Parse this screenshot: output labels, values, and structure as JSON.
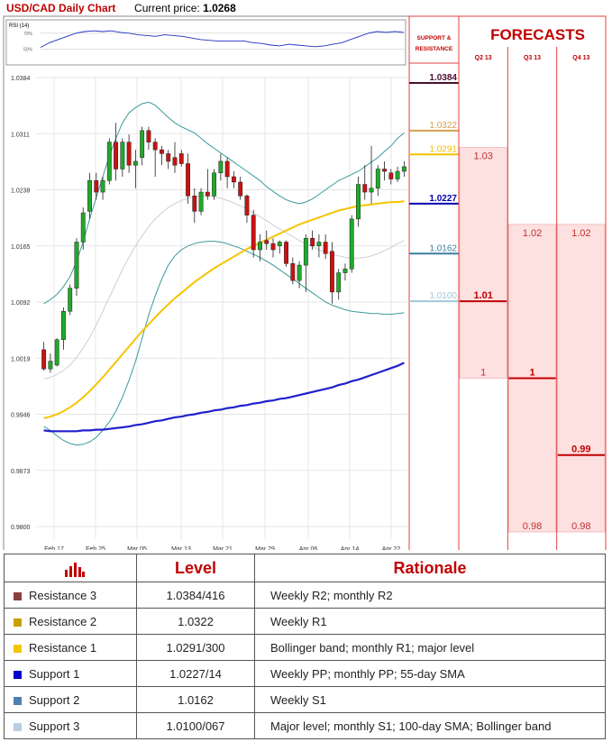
{
  "header": {
    "title": "USD/CAD Daily Chart",
    "price_label": "Current price: ",
    "price_value": "1.0268"
  },
  "rsi": {
    "label": "RSI (14)",
    "levels": [
      "70%",
      "50%"
    ],
    "values": [
      52,
      58,
      62,
      66,
      70,
      72,
      73,
      72,
      73,
      71,
      70,
      68,
      67,
      66,
      68,
      67,
      66,
      64,
      62,
      61,
      60,
      60,
      60,
      60,
      58,
      57,
      55,
      54,
      56,
      55,
      54,
      53,
      54,
      56,
      58,
      62,
      66,
      70,
      72,
      71,
      72,
      71
    ]
  },
  "chart_data": {
    "type": "candlestick",
    "yticks": [
      "1.0384",
      "1.0311",
      "1.0238",
      "1.0165",
      "1.0092",
      "1.0019",
      "0.9946",
      "0.9873",
      "0.9800"
    ],
    "ylim": [
      0.98,
      1.0384
    ],
    "xticks": [
      "Feb 17",
      "Feb 25",
      "Mar 05",
      "Mar 13",
      "Mar 21",
      "Mar 29",
      "Apr 06",
      "Apr 14",
      "Apr 22"
    ],
    "candles": [
      {
        "o": 1.003,
        "h": 1.004,
        "l": 1.0003,
        "c": 1.0005
      },
      {
        "o": 1.0005,
        "h": 1.0025,
        "l": 1.0,
        "c": 1.0015
      },
      {
        "o": 1.001,
        "h": 1.0045,
        "l": 1.0008,
        "c": 1.0043
      },
      {
        "o": 1.0043,
        "h": 1.0085,
        "l": 1.003,
        "c": 1.008
      },
      {
        "o": 1.008,
        "h": 1.0115,
        "l": 1.0075,
        "c": 1.011
      },
      {
        "o": 1.011,
        "h": 1.0175,
        "l": 1.01,
        "c": 1.017
      },
      {
        "o": 1.017,
        "h": 1.0215,
        "l": 1.016,
        "c": 1.0208
      },
      {
        "o": 1.021,
        "h": 1.026,
        "l": 1.02,
        "c": 1.025
      },
      {
        "o": 1.025,
        "h": 1.026,
        "l": 1.0225,
        "c": 1.0235
      },
      {
        "o": 1.0235,
        "h": 1.0255,
        "l": 1.0225,
        "c": 1.025
      },
      {
        "o": 1.025,
        "h": 1.0305,
        "l": 1.0245,
        "c": 1.03
      },
      {
        "o": 1.03,
        "h": 1.0325,
        "l": 1.025,
        "c": 1.0265
      },
      {
        "o": 1.0265,
        "h": 1.0305,
        "l": 1.0255,
        "c": 1.03
      },
      {
        "o": 1.03,
        "h": 1.031,
        "l": 1.026,
        "c": 1.027
      },
      {
        "o": 1.027,
        "h": 1.029,
        "l": 1.024,
        "c": 1.0275
      },
      {
        "o": 1.028,
        "h": 1.032,
        "l": 1.027,
        "c": 1.0315
      },
      {
        "o": 1.0315,
        "h": 1.032,
        "l": 1.029,
        "c": 1.03
      },
      {
        "o": 1.03,
        "h": 1.0305,
        "l": 1.0255,
        "c": 1.029
      },
      {
        "o": 1.029,
        "h": 1.0295,
        "l": 1.027,
        "c": 1.0285
      },
      {
        "o": 1.0285,
        "h": 1.029,
        "l": 1.0265,
        "c": 1.0275
      },
      {
        "o": 1.028,
        "h": 1.03,
        "l": 1.026,
        "c": 1.027
      },
      {
        "o": 1.0285,
        "h": 1.029,
        "l": 1.0268,
        "c": 1.0272
      },
      {
        "o": 1.0272,
        "h": 1.0285,
        "l": 1.022,
        "c": 1.023
      },
      {
        "o": 1.023,
        "h": 1.024,
        "l": 1.0195,
        "c": 1.021
      },
      {
        "o": 1.021,
        "h": 1.024,
        "l": 1.0205,
        "c": 1.0235
      },
      {
        "o": 1.0235,
        "h": 1.0265,
        "l": 1.0225,
        "c": 1.023
      },
      {
        "o": 1.023,
        "h": 1.0265,
        "l": 1.0225,
        "c": 1.026
      },
      {
        "o": 1.026,
        "h": 1.0285,
        "l": 1.025,
        "c": 1.0275
      },
      {
        "o": 1.0275,
        "h": 1.028,
        "l": 1.024,
        "c": 1.0255
      },
      {
        "o": 1.0255,
        "h": 1.0262,
        "l": 1.024,
        "c": 1.0248
      },
      {
        "o": 1.0248,
        "h": 1.0255,
        "l": 1.0225,
        "c": 1.023
      },
      {
        "o": 1.023,
        "h": 1.0232,
        "l": 1.0195,
        "c": 1.0205
      },
      {
        "o": 1.0205,
        "h": 1.0212,
        "l": 1.015,
        "c": 1.016
      },
      {
        "o": 1.016,
        "h": 1.018,
        "l": 1.0145,
        "c": 1.017
      },
      {
        "o": 1.0172,
        "h": 1.0185,
        "l": 1.016,
        "c": 1.0168
      },
      {
        "o": 1.0168,
        "h": 1.0175,
        "l": 1.015,
        "c": 1.016
      },
      {
        "o": 1.0165,
        "h": 1.0172,
        "l": 1.0155,
        "c": 1.017
      },
      {
        "o": 1.017,
        "h": 1.0172,
        "l": 1.0138,
        "c": 1.0142
      },
      {
        "o": 1.0142,
        "h": 1.015,
        "l": 1.0115,
        "c": 1.012
      },
      {
        "o": 1.012,
        "h": 1.0145,
        "l": 1.011,
        "c": 1.014
      },
      {
        "o": 1.014,
        "h": 1.018,
        "l": 1.0105,
        "c": 1.0175
      },
      {
        "o": 1.0175,
        "h": 1.0185,
        "l": 1.016,
        "c": 1.0165
      },
      {
        "o": 1.0165,
        "h": 1.018,
        "l": 1.015,
        "c": 1.017
      },
      {
        "o": 1.017,
        "h": 1.018,
        "l": 1.0148,
        "c": 1.0155
      },
      {
        "o": 1.0158,
        "h": 1.017,
        "l": 1.009,
        "c": 1.0105
      },
      {
        "o": 1.0105,
        "h": 1.0135,
        "l": 1.0095,
        "c": 1.013
      },
      {
        "o": 1.013,
        "h": 1.0142,
        "l": 1.012,
        "c": 1.0135
      },
      {
        "o": 1.0135,
        "h": 1.0205,
        "l": 1.013,
        "c": 1.02
      },
      {
        "o": 1.02,
        "h": 1.0255,
        "l": 1.019,
        "c": 1.0245
      },
      {
        "o": 1.0245,
        "h": 1.027,
        "l": 1.0225,
        "c": 1.0235
      },
      {
        "o": 1.0235,
        "h": 1.0295,
        "l": 1.022,
        "c": 1.024
      },
      {
        "o": 1.024,
        "h": 1.027,
        "l": 1.023,
        "c": 1.0265
      },
      {
        "o": 1.0265,
        "h": 1.0275,
        "l": 1.025,
        "c": 1.0262
      },
      {
        "o": 1.026,
        "h": 1.0265,
        "l": 1.0245,
        "c": 1.0252
      },
      {
        "o": 1.0252,
        "h": 1.0268,
        "l": 1.0248,
        "c": 1.0262
      },
      {
        "o": 1.0262,
        "h": 1.0275,
        "l": 1.0255,
        "c": 1.0268
      }
    ],
    "sma55": [
      0.9941,
      0.9943,
      0.9946,
      0.995,
      0.9955,
      0.9961,
      0.9968,
      0.9976,
      0.9985,
      0.9994,
      1.0004,
      1.0014,
      1.0024,
      1.0034,
      1.0044,
      1.0054,
      1.0063,
      1.0072,
      1.0081,
      1.0089,
      1.0097,
      1.0104,
      1.0111,
      1.0118,
      1.0124,
      1.013,
      1.0136,
      1.0141,
      1.0146,
      1.0151,
      1.0156,
      1.0161,
      1.0165,
      1.0169,
      1.0173,
      1.0177,
      1.0181,
      1.0185,
      1.0189,
      1.0193,
      1.0196,
      1.0199,
      1.0202,
      1.0205,
      1.0208,
      1.0211,
      1.0213,
      1.0215,
      1.0217,
      1.0218,
      1.0219,
      1.022,
      1.0221,
      1.0222,
      1.0222,
      1.0223
    ],
    "sma200": [
      0.9925,
      0.9924,
      0.9924,
      0.9924,
      0.9924,
      0.9924,
      0.9925,
      0.9925,
      0.9926,
      0.9926,
      0.9927,
      0.9928,
      0.9929,
      0.993,
      0.9932,
      0.9933,
      0.9935,
      0.9937,
      0.9938,
      0.994,
      0.9942,
      0.9943,
      0.9945,
      0.9946,
      0.9948,
      0.9949,
      0.9951,
      0.9952,
      0.9954,
      0.9955,
      0.9957,
      0.9958,
      0.996,
      0.9961,
      0.9963,
      0.9964,
      0.9966,
      0.9967,
      0.9969,
      0.9971,
      0.9973,
      0.9975,
      0.9977,
      0.9979,
      0.9981,
      0.9984,
      0.9986,
      0.9989,
      0.9991,
      0.9994,
      0.9997,
      1.0,
      1.0003,
      1.0006,
      1.0009,
      1.0013
    ],
    "bb_upper": [
      1.009,
      1.0095,
      1.0102,
      1.0112,
      1.0125,
      1.0145,
      1.017,
      1.02,
      1.0228,
      1.0255,
      1.0282,
      1.0305,
      1.0325,
      1.0338,
      1.0345,
      1.035,
      1.0352,
      1.0348,
      1.034,
      1.0332,
      1.0325,
      1.032,
      1.0316,
      1.0312,
      1.0305,
      1.0298,
      1.0292,
      1.0286,
      1.028,
      1.0274,
      1.0268,
      1.0262,
      1.0256,
      1.025,
      1.0242,
      1.0236,
      1.023,
      1.0225,
      1.0222,
      1.022,
      1.0222,
      1.0226,
      1.0232,
      1.0238,
      1.0244,
      1.025,
      1.0254,
      1.0258,
      1.0262,
      1.0268,
      1.0274,
      1.028,
      1.0288,
      1.0295,
      1.0305,
      1.0312
    ],
    "bb_middle": [
      0.9992,
      0.9994,
      0.9998,
      1.0003,
      1.001,
      1.002,
      1.0032,
      1.0046,
      1.0062,
      1.008,
      1.0098,
      1.0116,
      1.0134,
      1.015,
      1.0165,
      1.0178,
      1.019,
      1.02,
      1.0208,
      1.0215,
      1.022,
      1.0224,
      1.0227,
      1.0229,
      1.023,
      1.023,
      1.0229,
      1.0227,
      1.0224,
      1.0221,
      1.0217,
      1.0213,
      1.0208,
      1.0203,
      1.0198,
      1.0192,
      1.0187,
      1.0182,
      1.0177,
      1.0172,
      1.0168,
      1.0164,
      1.016,
      1.0157,
      1.0154,
      1.0152,
      1.015,
      1.0149,
      1.0149,
      1.015,
      1.0152,
      1.0155,
      1.0159,
      1.0163,
      1.0168,
      1.0172
    ],
    "bb_lower": [
      0.993,
      0.9925,
      0.9918,
      0.9912,
      0.9908,
      0.9906,
      0.9907,
      0.991,
      0.9916,
      0.9925,
      0.9936,
      0.995,
      0.9968,
      0.999,
      1.0015,
      1.0045,
      1.0075,
      1.01,
      1.0122,
      1.014,
      1.0152,
      1.016,
      1.0165,
      1.0168,
      1.017,
      1.0171,
      1.0171,
      1.017,
      1.0168,
      1.0165,
      1.0162,
      1.0158,
      1.0154,
      1.015,
      1.0145,
      1.014,
      1.0134,
      1.0128,
      1.0122,
      1.0116,
      1.011,
      1.0104,
      1.0098,
      1.0092,
      1.0088,
      1.0085,
      1.0082,
      1.008,
      1.0079,
      1.0078,
      1.0077,
      1.0077,
      1.0076,
      1.0076,
      1.0077,
      1.0078
    ],
    "sr_levels": [
      {
        "label": "1.0384",
        "value": 1.0384,
        "color": "#4a1030",
        "bold": true
      },
      {
        "label": "1.0322",
        "value": 1.0322,
        "color": "#d4a050",
        "bold": false
      },
      {
        "label": "1.0291",
        "value": 1.0291,
        "color": "#f0c000",
        "bold": false
      },
      {
        "label": "1.0227",
        "value": 1.0227,
        "color": "#0000aa",
        "bold": true
      },
      {
        "label": "1.0162",
        "value": 1.0162,
        "color": "#3a7fa0",
        "bold": false
      },
      {
        "label": "1.0100",
        "value": 1.01,
        "color": "#a0c8d8",
        "bold": false
      }
    ]
  },
  "support_resistance": {
    "title_line1": "SUPPORT &",
    "title_line2": "RESISTANCE"
  },
  "forecasts": {
    "title": "FORECASTS",
    "columns": [
      {
        "label": "Q2 13",
        "upper": 1.03,
        "upper_label": "1.03",
        "mid": 1.01,
        "mid_label": "1.01",
        "lower": 1.0,
        "lower_label": "1"
      },
      {
        "label": "Q3 13",
        "upper": 1.02,
        "upper_label": "1.02",
        "mid": 1.0,
        "mid_label": "1",
        "lower": 0.98,
        "lower_label": "0.98"
      },
      {
        "label": "Q4 13",
        "upper": 1.02,
        "upper_label": "1.02",
        "mid": 0.99,
        "mid_label": "0.99",
        "lower": 0.98,
        "lower_label": "0.98"
      }
    ]
  },
  "table": {
    "headers": [
      "",
      "Level",
      "Rationale"
    ],
    "rows": [
      {
        "name": "Resistance 3",
        "level": "1.0384/416",
        "rationale": "Weekly R2; monthly R2",
        "color": "#8b4040"
      },
      {
        "name": "Resistance 2",
        "level": "1.0322",
        "rationale": "Weekly R1",
        "color": "#c8a000"
      },
      {
        "name": "Resistance 1",
        "level": "1.0291/300",
        "rationale": "Bollinger band; monthly R1; major level",
        "color": "#f5c400"
      },
      {
        "name": "Support 1",
        "level": "1.0227/14",
        "rationale": "Weekly PP; monthly PP; 55-day SMA",
        "color": "#0000cc"
      },
      {
        "name": "Support 2",
        "level": "1.0162",
        "rationale": "Weekly S1",
        "color": "#4f7fb0"
      },
      {
        "name": "Support 3",
        "level": "1.0100/067",
        "rationale": "Major level; monthly S1; 100-day SMA; Bollinger band",
        "color": "#b8cce4"
      }
    ]
  },
  "colors": {
    "bull": "#1faa2a",
    "bear": "#cc1111",
    "forecast_fill": "#fde0e0",
    "forecast_border": "#e04040",
    "title_red": "#c00000",
    "sma55": "#f5c400",
    "sma200": "#2020cc",
    "bb": "#3a9a9a"
  }
}
